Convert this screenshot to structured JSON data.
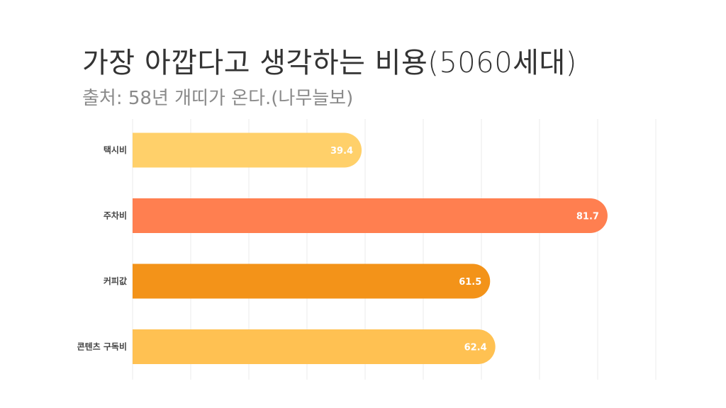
{
  "title": "가장 아깝다고 생각하는 비용(5060세대)",
  "subtitle": "출처: 58년 개띠가 온다.(나무늘보)",
  "colors": {
    "bar_1": "#FFD06A",
    "bar_2": "#FF7F50",
    "bar_3": "#F39319",
    "bar_4": "#FFC152",
    "grid": "#ebebeb"
  },
  "chart_data": {
    "type": "bar",
    "orientation": "horizontal",
    "categories": [
      "택시비",
      "주차비",
      "커피값",
      "콘텐츠 구독비"
    ],
    "values": [
      39.4,
      81.7,
      61.5,
      62.4
    ],
    "value_labels": [
      "39.4",
      "81.7",
      "61.5",
      "62.4"
    ],
    "xlim": [
      0,
      90
    ],
    "grid": true,
    "title": "가장 아깝다고 생각하는 비용(5060세대)",
    "subtitle": "출처: 58년 개띠가 온다.(나무늘보)"
  }
}
